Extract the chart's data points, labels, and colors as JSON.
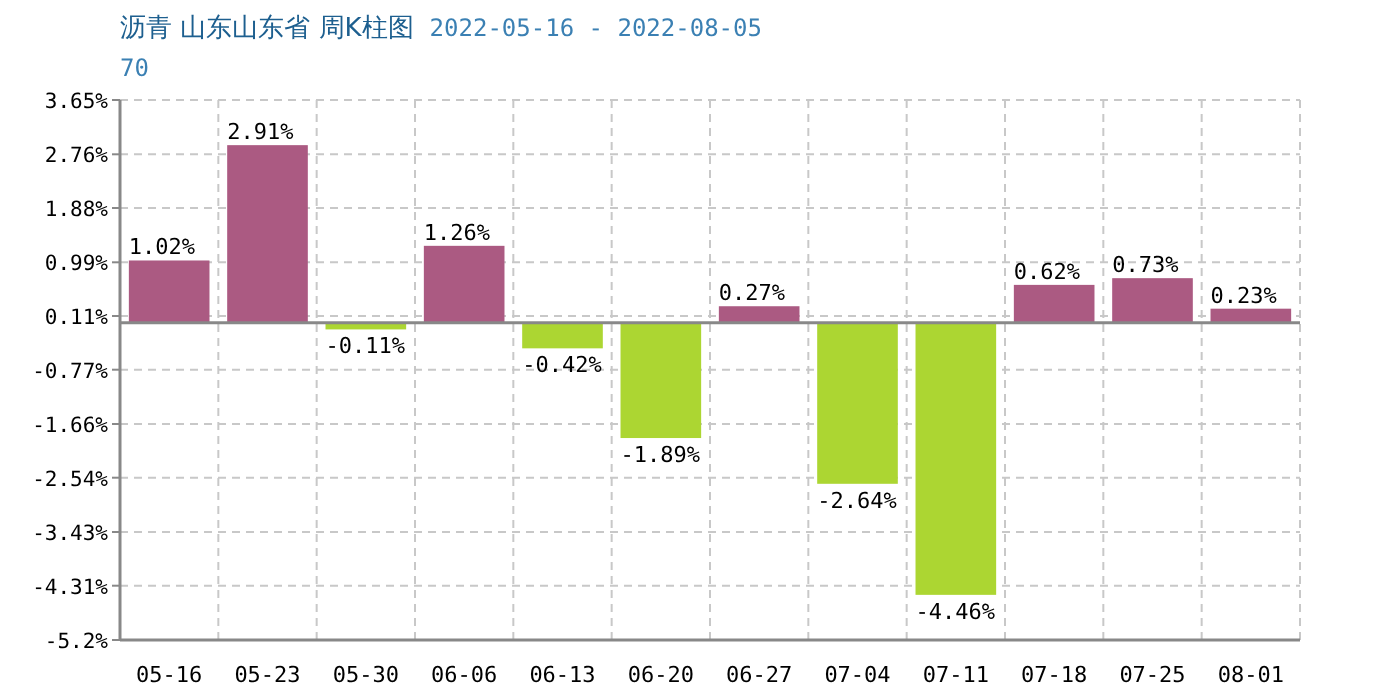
{
  "chart_data": {
    "type": "bar",
    "title": "沥青 山东山东省 周K柱图",
    "subtitle": "2022-05-16 - 2022-08-05",
    "annotations": [
      "70"
    ],
    "categories": [
      "05-16",
      "05-23",
      "05-30",
      "06-06",
      "06-13",
      "06-20",
      "06-27",
      "07-04",
      "07-11",
      "07-18",
      "07-25",
      "08-01"
    ],
    "values": [
      1.02,
      2.91,
      -0.11,
      1.26,
      -0.42,
      -1.89,
      0.27,
      -2.64,
      -4.46,
      0.62,
      0.73,
      0.23
    ],
    "value_labels": [
      "1.02%",
      "2.91%",
      "-0.11%",
      "1.26%",
      "-0.42%",
      "-1.89%",
      "0.27%",
      "-2.64%",
      "-4.46%",
      "0.62%",
      "0.73%",
      "0.23%"
    ],
    "colors": [
      "#ab5a82",
      "#ab5a82",
      "#acd632",
      "#ab5a82",
      "#acd632",
      "#acd632",
      "#ab5a82",
      "#acd632",
      "#acd632",
      "#ab5a82",
      "#ab5a82",
      "#ab5a82"
    ],
    "ylim": [
      -5.2,
      3.65
    ],
    "yticks": [
      {
        "value": 3.65,
        "label": "3.65%"
      },
      {
        "value": 2.76,
        "label": "2.76%"
      },
      {
        "value": 1.88,
        "label": "1.88%"
      },
      {
        "value": 0.99,
        "label": "0.99%"
      },
      {
        "value": 0.11,
        "label": "0.11%"
      },
      {
        "value": -0.77,
        "label": "-0.77%"
      },
      {
        "value": -1.66,
        "label": "-1.66%"
      },
      {
        "value": -2.54,
        "label": "-2.54%"
      },
      {
        "value": -3.43,
        "label": "-3.43%"
      },
      {
        "value": -4.31,
        "label": "-4.31%"
      },
      {
        "value": -5.2,
        "label": "-5.2%"
      }
    ],
    "grid": true
  }
}
